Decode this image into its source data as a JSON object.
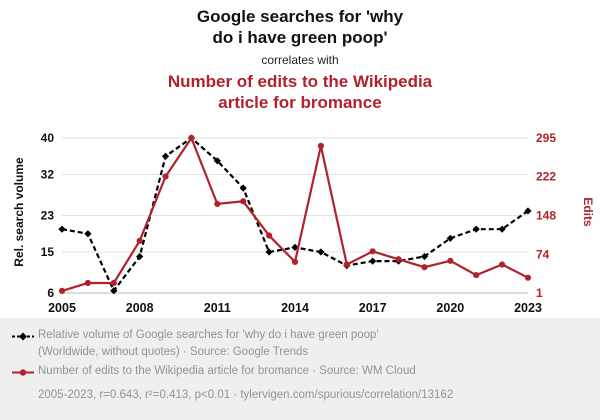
{
  "header": {
    "title_black_line1": "Google searches for 'why",
    "title_black_line2": "do i have green poop'",
    "connector": "correlates with",
    "title_red_line1": "Number of edits to the Wikipedia",
    "title_red_line2": "article for bromance"
  },
  "chart_data": {
    "type": "line",
    "x": [
      2005,
      2006,
      2007,
      2008,
      2009,
      2010,
      2011,
      2012,
      2013,
      2014,
      2015,
      2016,
      2017,
      2018,
      2019,
      2020,
      2021,
      2022,
      2023
    ],
    "series": [
      {
        "name": "Relative volume of Google searches for 'why do i have green poop'",
        "axis": "left",
        "color": "#000000",
        "style": "dashed-diamond",
        "values": [
          20,
          19,
          6.5,
          14,
          36,
          40,
          35,
          29,
          15,
          16,
          15,
          12,
          13,
          13,
          14,
          18,
          20,
          20,
          24
        ]
      },
      {
        "name": "Number of edits to the Wikipedia article for bromance",
        "axis": "right",
        "color": "#b0232d",
        "style": "solid-circle",
        "values": [
          5,
          20,
          20,
          100,
          222,
          295,
          170,
          175,
          110,
          60,
          280,
          55,
          80,
          65,
          50,
          62,
          35,
          55,
          30
        ]
      }
    ],
    "left_axis": {
      "label": "Rel. search volume",
      "ticks": [
        6,
        15,
        23,
        32,
        40
      ],
      "range": [
        6,
        40
      ]
    },
    "right_axis": {
      "label": "Edits",
      "ticks": [
        1,
        74,
        148,
        222,
        295
      ],
      "range": [
        1,
        295
      ]
    },
    "x_ticks": [
      2005,
      2008,
      2011,
      2014,
      2017,
      2020,
      2023
    ],
    "grid": "horizontal"
  },
  "footer": {
    "legend1_line1": "Relative volume of Google searches for 'why do i have green poop'",
    "legend1_line2": "(Worldwide, without quotes) · Source: Google Trends",
    "legend2": "Number of edits to the Wikipedia article for bromance · Source: WM Cloud",
    "stats": "2005-2023, r=0.643, r²=0.413, p<0.01 · tylervigen.com/spurious/correlation/13162"
  },
  "colors": {
    "red": "#b0232d",
    "black": "#000000",
    "grid": "#e2e2e2",
    "footer_bg": "#efefef",
    "footer_text": "#8f9496"
  }
}
